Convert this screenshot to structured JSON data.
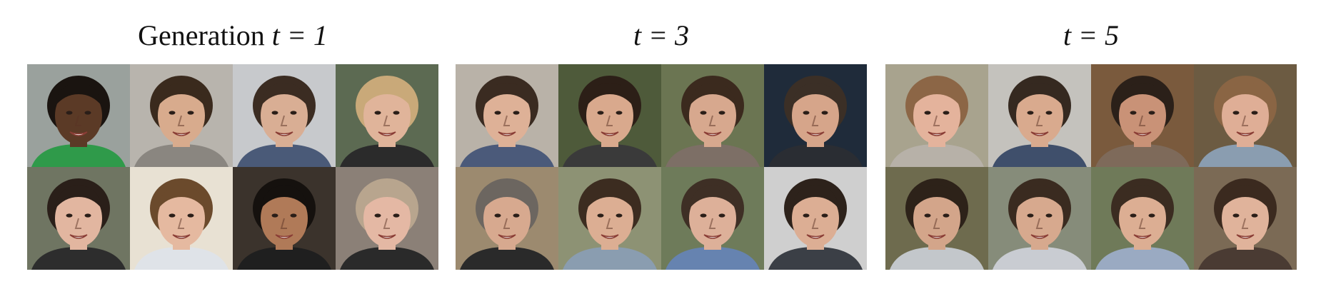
{
  "panels": [
    {
      "title_text": "Generation ",
      "title_math": "t = 1",
      "faces": [
        {
          "bg": "#9aa19d",
          "skin": "#5b3a26",
          "hair": "#1a1410",
          "shirt": "#2f9a4a"
        },
        {
          "bg": "#b8b4ad",
          "skin": "#d8ab8d",
          "hair": "#3a2a1d",
          "shirt": "#8a8680"
        },
        {
          "bg": "#c7c9cc",
          "skin": "#d9ae94",
          "hair": "#3b2c22",
          "shirt": "#4a5a78"
        },
        {
          "bg": "#5c6a52",
          "skin": "#e0b49a",
          "hair": "#c9a979",
          "shirt": "#2b2b2b"
        },
        {
          "bg": "#6f7562",
          "skin": "#e2b6a0",
          "hair": "#2a1f19",
          "shirt": "#2d2d2d"
        },
        {
          "bg": "#e8e1d3",
          "skin": "#e5b9a0",
          "hair": "#6b4a2c",
          "shirt": "#dfe3e8"
        },
        {
          "bg": "#3b332c",
          "skin": "#b07a58",
          "hair": "#15110e",
          "shirt": "#1f1f1f"
        },
        {
          "bg": "#8b8077",
          "skin": "#e4b8a4",
          "hair": "#b8a58e",
          "shirt": "#2a2a2a"
        }
      ]
    },
    {
      "title_text": "",
      "title_math": "t = 3",
      "faces": [
        {
          "bg": "#b9b2a8",
          "skin": "#deb197",
          "hair": "#3a2b21",
          "shirt": "#4b5a7a"
        },
        {
          "bg": "#4e5a3a",
          "skin": "#d9a98d",
          "hair": "#2c1f17",
          "shirt": "#3a3a3a"
        },
        {
          "bg": "#6b7552",
          "skin": "#d7a88e",
          "hair": "#3b2a1e",
          "shirt": "#7d6f66"
        },
        {
          "bg": "#1f2b3a",
          "skin": "#d6a58a",
          "hair": "#3b2f26",
          "shirt": "#2a2d33"
        },
        {
          "bg": "#9c8a6f",
          "skin": "#d7a98f",
          "hair": "#6c6660",
          "shirt": "#2a2a2a"
        },
        {
          "bg": "#8d9274",
          "skin": "#dcae93",
          "hair": "#3c2c20",
          "shirt": "#8a9db0"
        },
        {
          "bg": "#6e7b5a",
          "skin": "#ddb099",
          "hair": "#3e2f25",
          "shirt": "#6683b0"
        },
        {
          "bg": "#cfcfcf",
          "skin": "#dcae94",
          "hair": "#2d221b",
          "shirt": "#3b3f46"
        }
      ]
    },
    {
      "title_text": "",
      "title_math": "t = 5",
      "faces": [
        {
          "bg": "#a8a38e",
          "skin": "#e4b39c",
          "hair": "#8c6646",
          "shirt": "#b7b1a8"
        },
        {
          "bg": "#c4c2bd",
          "skin": "#d9aa8e",
          "hair": "#352920",
          "shirt": "#3f4f6b"
        },
        {
          "bg": "#7a5a3d",
          "skin": "#c99277",
          "hair": "#2b2019",
          "shirt": "#7e6a5a"
        },
        {
          "bg": "#6c5b42",
          "skin": "#dfae96",
          "hair": "#8a6544",
          "shirt": "#8a9db0"
        },
        {
          "bg": "#6e6b4e",
          "skin": "#d3a58a",
          "hair": "#2d2219",
          "shirt": "#c3c7cb"
        },
        {
          "bg": "#868c7a",
          "skin": "#d7a98e",
          "hair": "#3a2b20",
          "shirt": "#c9ccd2"
        },
        {
          "bg": "#6f7a59",
          "skin": "#dcae93",
          "hair": "#3b2c21",
          "shirt": "#9aaac2"
        },
        {
          "bg": "#7b6a55",
          "skin": "#e0b39b",
          "hair": "#3b2a1f",
          "shirt": "#4a3b33"
        }
      ]
    }
  ]
}
